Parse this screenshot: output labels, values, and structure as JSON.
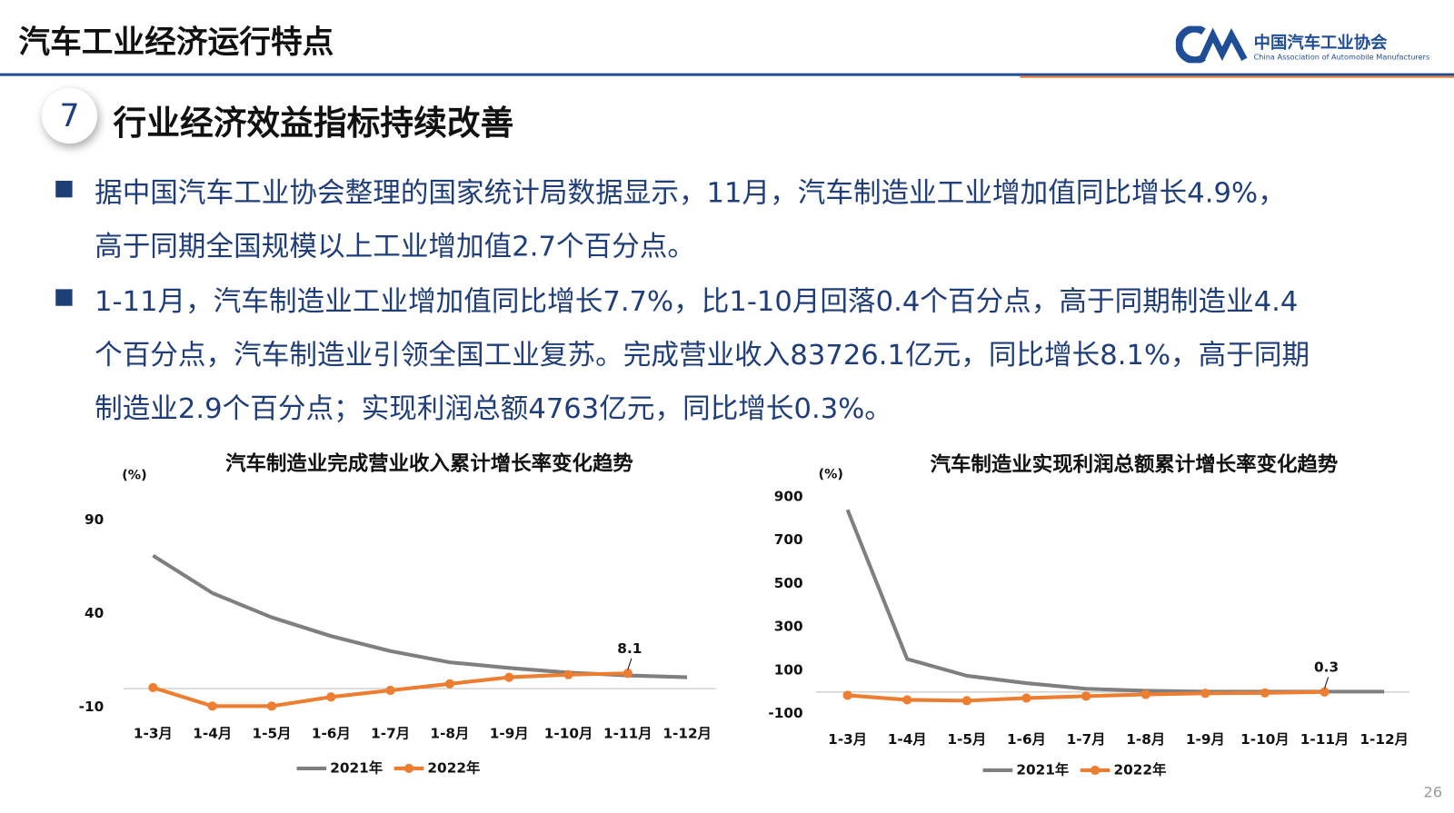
{
  "header": {
    "title": "汽车工业经济运行特点",
    "logo_name": "中国汽车工业协会",
    "logo_english": "China Association of Automobile Manufacturers"
  },
  "section": {
    "number": "7",
    "title": "行业经济效益指标持续改善"
  },
  "bullets": [
    {
      "lines": [
        "据中国汽车工业协会整理的国家统计局数据显示，11月，汽车制造业工业增加值同比增长4.9%，",
        "高于同期全国规模以上工业增加值2.7个百分点。"
      ]
    },
    {
      "lines": [
        "1-11月，汽车制造业工业增加值同比增长7.7%，比1-10月回落0.4个百分点，高于同期制造业4.4",
        "个百分点，汽车制造业引领全国工业复苏。完成营业收入83726.1亿元，同比增长8.1%，高于同期",
        "制造业2.9个百分点；实现利润总额4763亿元，同比增长0.3%。"
      ]
    }
  ],
  "page_number": "26",
  "chart_data": [
    {
      "type": "line",
      "title": "汽车制造业完成营业收入累计增长率变化趋势",
      "y_label": "(%)",
      "categories": [
        "1-3月",
        "1-4月",
        "1-5月",
        "1-6月",
        "1-7月",
        "1-8月",
        "1-9月",
        "1-10月",
        "1-11月",
        "1-12月"
      ],
      "series": [
        {
          "name": "2021年",
          "color": "#7f7f7f",
          "markers": false,
          "values": [
            71,
            51,
            38,
            28,
            20,
            14,
            11,
            8.5,
            7,
            6
          ]
        },
        {
          "name": "2022年",
          "color": "#ed7d31",
          "markers": true,
          "values": [
            0.5,
            -9.4,
            -9.4,
            -4.5,
            -1,
            2.5,
            6,
            7.4,
            8.1,
            null
          ],
          "value_labels": [
            null,
            null,
            null,
            null,
            null,
            null,
            null,
            null,
            "8.1",
            null
          ]
        }
      ],
      "ylim": [
        -10,
        90
      ],
      "yticks": [
        -10,
        40,
        90
      ],
      "grid": false
    },
    {
      "type": "line",
      "title": "汽车制造业实现利润总额累计增长率变化趋势",
      "y_label": "(%)",
      "categories": [
        "1-3月",
        "1-4月",
        "1-5月",
        "1-6月",
        "1-7月",
        "1-8月",
        "1-9月",
        "1-10月",
        "1-11月",
        "1-12月"
      ],
      "series": [
        {
          "name": "2021年",
          "color": "#7f7f7f",
          "markers": false,
          "values": [
            840,
            152,
            75,
            41,
            15,
            6,
            2,
            2,
            2,
            2
          ]
        },
        {
          "name": "2022年",
          "color": "#ed7d31",
          "markers": true,
          "values": [
            -15,
            -36,
            -40,
            -28,
            -19,
            -11,
            -6,
            -4,
            0.3,
            null
          ],
          "value_labels": [
            null,
            null,
            null,
            null,
            null,
            null,
            null,
            null,
            "0.3",
            null
          ]
        }
      ],
      "ylim": [
        -100,
        900
      ],
      "yticks": [
        -100,
        100,
        300,
        500,
        700,
        900
      ],
      "grid": false
    }
  ]
}
